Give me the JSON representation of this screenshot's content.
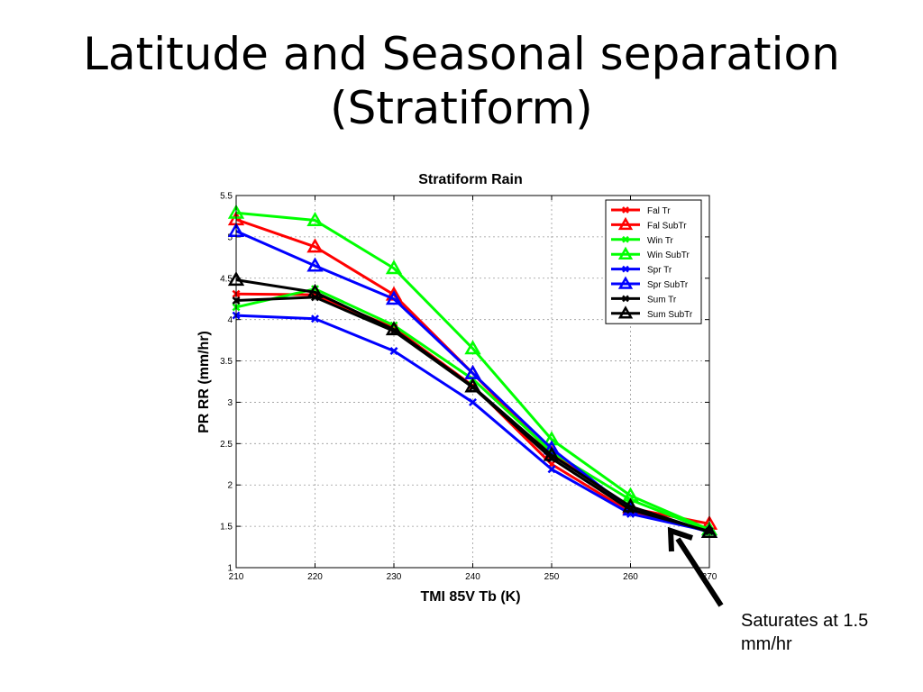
{
  "slide": {
    "title_line1": "Latitude and Seasonal separation",
    "title_line2": "(Stratiform)",
    "annotation": "Saturates at 1.5 mm/hr"
  },
  "chart_data": {
    "type": "line",
    "title": "Stratiform Rain",
    "xlabel": "TMI 85V Tb (K)",
    "ylabel": "PR RR (mm/hr)",
    "xlim": [
      210,
      270
    ],
    "ylim": [
      1,
      5.5
    ],
    "xticks": [
      210,
      220,
      230,
      240,
      250,
      260,
      270
    ],
    "yticks": [
      1,
      1.5,
      2,
      2.5,
      3,
      3.5,
      4,
      4.5,
      5,
      5.5
    ],
    "grid": true,
    "legend_position": "top-right",
    "x": [
      210,
      220,
      230,
      240,
      250,
      260,
      270
    ],
    "series": [
      {
        "name": "Fal Tr",
        "color": "#ff0000",
        "marker": "x",
        "values": [
          4.31,
          4.3,
          3.9,
          3.2,
          2.25,
          1.67,
          1.45
        ]
      },
      {
        "name": "Fal SubTr",
        "color": "#ff0000",
        "marker": "triangle",
        "values": [
          5.21,
          4.88,
          4.3,
          3.35,
          2.38,
          1.72,
          1.53
        ]
      },
      {
        "name": "Win Tr",
        "color": "#00ff00",
        "marker": "x",
        "values": [
          4.15,
          4.37,
          3.93,
          3.28,
          2.4,
          1.82,
          1.45
        ]
      },
      {
        "name": "Win SubTr",
        "color": "#00ff00",
        "marker": "triangle",
        "values": [
          5.29,
          5.2,
          4.62,
          3.65,
          2.55,
          1.87,
          1.46
        ]
      },
      {
        "name": "Spr Tr",
        "color": "#0000ff",
        "marker": "x",
        "values": [
          4.05,
          4.01,
          3.62,
          3.0,
          2.19,
          1.65,
          1.44
        ]
      },
      {
        "name": "Spr SubTr",
        "color": "#0000ff",
        "marker": "triangle",
        "values": [
          5.07,
          4.65,
          4.25,
          3.35,
          2.44,
          1.7,
          1.43
        ]
      },
      {
        "name": "Sum Tr",
        "color": "#000000",
        "marker": "x",
        "values": [
          4.23,
          4.27,
          3.86,
          3.18,
          2.32,
          1.7,
          1.44
        ]
      },
      {
        "name": "Sum SubTr",
        "color": "#000000",
        "marker": "triangle",
        "values": [
          4.48,
          4.33,
          3.88,
          3.19,
          2.36,
          1.74,
          1.43
        ]
      }
    ]
  }
}
